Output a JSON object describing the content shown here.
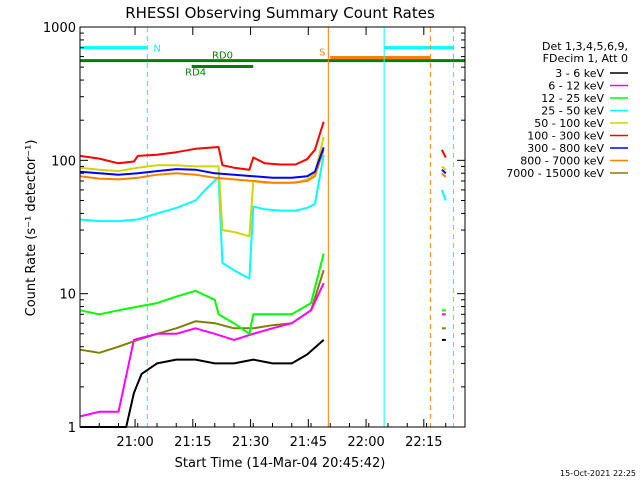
{
  "chart_data": {
    "type": "line",
    "title": "RHESSI Observing Summary Count Rates",
    "xlabel": "Start Time (14-Mar-04 20:45:42)",
    "ylabel": "Count Rate (s⁻¹ detector⁻¹)",
    "y_scale": "log",
    "ylim": [
      1,
      1000
    ],
    "x_unit": "minutes after 20:45:42",
    "xlim": [
      0,
      100
    ],
    "x_ticks": [
      {
        "x": 14.3,
        "label": "21:00"
      },
      {
        "x": 29.3,
        "label": "21:15"
      },
      {
        "x": 44.3,
        "label": "21:30"
      },
      {
        "x": 59.3,
        "label": "21:45"
      },
      {
        "x": 74.3,
        "label": "22:00"
      },
      {
        "x": 89.3,
        "label": "22:15"
      }
    ],
    "y_ticks": [
      {
        "y": 1,
        "label": "1"
      },
      {
        "y": 10,
        "label": "10"
      },
      {
        "y": 100,
        "label": "100"
      },
      {
        "y": 1000,
        "label": "1000"
      }
    ],
    "legend_header": [
      "Det 1,3,4,5,6,9,",
      "FDecim 1, Att 0"
    ],
    "legend_position": "right",
    "timestamp": "15-Oct-2021 22:25",
    "series": [
      {
        "name": "3 - 6 keV",
        "color": "#000000",
        "x": [
          0,
          12,
          14,
          16,
          20,
          25,
          30,
          35,
          40,
          45,
          50,
          55,
          59,
          63.3,
          94,
          95
        ],
        "y": [
          1,
          1,
          1.8,
          2.5,
          3.0,
          3.2,
          3.2,
          3.0,
          3.0,
          3.2,
          3.0,
          3.0,
          3.5,
          4.5,
          4.5,
          4.5
        ]
      },
      {
        "name": "6 - 12 keV",
        "color": "#ff00ff",
        "x": [
          0,
          5,
          10,
          14,
          20,
          25,
          30,
          35,
          40,
          45,
          50,
          55,
          60,
          63.3,
          94,
          95
        ],
        "y": [
          1.2,
          1.3,
          1.3,
          4.5,
          5.0,
          5.0,
          5.5,
          5.0,
          4.5,
          5.0,
          5.5,
          6.0,
          7.5,
          12,
          7,
          7
        ]
      },
      {
        "name": "12 - 25 keV",
        "color": "#00ff00",
        "x": [
          0,
          5,
          10,
          15,
          20,
          25,
          30,
          35,
          36,
          40,
          44,
          45,
          50,
          55,
          60,
          63.3,
          94,
          95
        ],
        "y": [
          7.5,
          7.0,
          7.5,
          8.0,
          8.5,
          9.5,
          10.5,
          9.0,
          7.0,
          6.0,
          5.0,
          7.0,
          7.0,
          7.0,
          8.5,
          20,
          7.5,
          7.5
        ]
      },
      {
        "name": "25 - 50 keV",
        "color": "#00ffff",
        "x": [
          0,
          5,
          10,
          15,
          20,
          25,
          30,
          33,
          36,
          37,
          40,
          44,
          45,
          48,
          52,
          56,
          59,
          61,
          63.3,
          94,
          95
        ],
        "y": [
          36,
          35,
          35,
          36,
          40,
          44,
          50,
          62,
          75,
          17,
          15,
          13,
          45,
          43,
          42,
          42,
          44,
          47,
          110,
          60,
          50
        ]
      },
      {
        "name": "50 - 100 keV",
        "color": "#d4d400",
        "x": [
          0,
          5,
          10,
          15,
          20,
          25,
          30,
          33,
          36,
          37,
          40,
          44,
          45,
          48,
          52,
          56,
          59,
          61,
          63.3,
          94,
          95
        ],
        "y": [
          88,
          85,
          83,
          88,
          92,
          92,
          90,
          90,
          90,
          30,
          29,
          27,
          70,
          68,
          68,
          68,
          72,
          80,
          150,
          90,
          85
        ]
      },
      {
        "name": "100 - 300 keV",
        "color": "#ff0000",
        "x": [
          0,
          5,
          10,
          14,
          15,
          20,
          25,
          30,
          33,
          36,
          37,
          40,
          44,
          45,
          48,
          52,
          56,
          59,
          61,
          63.3,
          94,
          95
        ],
        "y": [
          108,
          103,
          95,
          98,
          108,
          110,
          115,
          122,
          124,
          126,
          92,
          88,
          85,
          105,
          95,
          93,
          93,
          102,
          120,
          195,
          120,
          105
        ]
      },
      {
        "name": "300 - 800 keV",
        "color": "#0000ff",
        "x": [
          0,
          5,
          10,
          15,
          20,
          25,
          30,
          35,
          40,
          45,
          50,
          55,
          59,
          61,
          63.3,
          94,
          95
        ],
        "y": [
          82,
          80,
          78,
          80,
          83,
          86,
          85,
          80,
          78,
          76,
          74,
          74,
          76,
          82,
          125,
          85,
          80
        ]
      },
      {
        "name": "800 - 7000 keV",
        "color": "#ff8000",
        "x": [
          0,
          5,
          10,
          15,
          20,
          25,
          30,
          35,
          40,
          45,
          50,
          55,
          59,
          61,
          63.3,
          94,
          95
        ],
        "y": [
          76,
          73,
          72,
          74,
          78,
          80,
          78,
          74,
          72,
          70,
          68,
          68,
          70,
          76,
          120,
          80,
          75
        ]
      },
      {
        "name": "7000 - 15000 keV",
        "color": "#808000",
        "x": [
          0,
          5,
          10,
          15,
          20,
          25,
          30,
          35,
          40,
          45,
          50,
          55,
          60,
          63.3,
          94,
          95
        ],
        "y": [
          3.8,
          3.6,
          4.0,
          4.5,
          5.0,
          5.5,
          6.2,
          6.0,
          5.5,
          5.5,
          5.8,
          6.0,
          7.5,
          15,
          5.5,
          5.5
        ]
      }
    ],
    "flags": {
      "night": {
        "label": "N",
        "color": "#00ffff",
        "y": 700,
        "spans": [
          [
            0,
            17.5
          ],
          [
            79,
            97
          ]
        ]
      },
      "saa": {
        "label": "S",
        "color": "#ff8000",
        "y": 590,
        "spans": [
          [
            65,
            91
          ]
        ]
      },
      "rd0": {
        "label": "RD0",
        "color": "#008000",
        "y": 560,
        "spans": [
          [
            0,
            100
          ]
        ]
      },
      "rd4": {
        "label": "RD4",
        "color": "#008000",
        "y": 505,
        "spans": [
          [
            29,
            45
          ]
        ]
      }
    },
    "vlines": [
      {
        "x": 17.5,
        "color": "#00ffff",
        "style": "dashed"
      },
      {
        "x": 64.5,
        "color": "#ff8000",
        "style": "solid"
      },
      {
        "x": 79,
        "color": "#00ffff",
        "style": "solid"
      },
      {
        "x": 91,
        "color": "#ff8000",
        "style": "dashed"
      },
      {
        "x": 97,
        "color": "#00ffff",
        "style": "dashed"
      }
    ],
    "data_gap": [
      64.5,
      93.5
    ]
  }
}
